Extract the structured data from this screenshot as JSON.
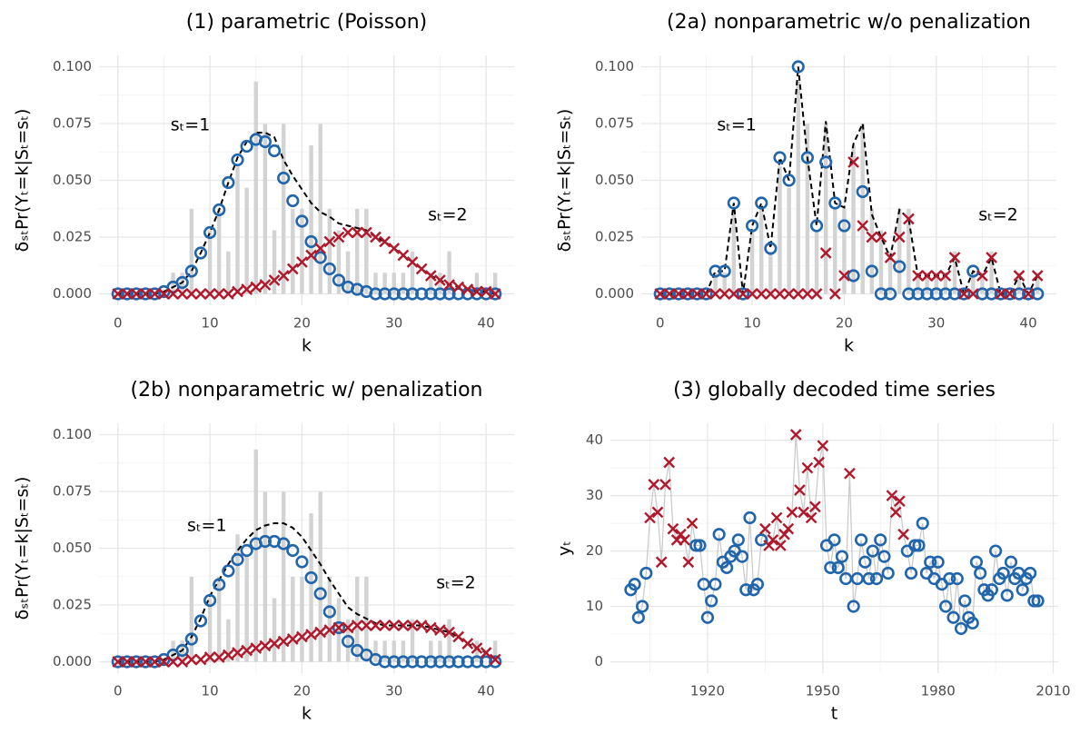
{
  "chart_data": [
    {
      "type": "combo",
      "title": "(1) parametric (Poisson)",
      "xlabel": "k",
      "ylabel": "δₛₜPr(Yₜ=k|Sₜ=sₜ)",
      "annotations": [
        "sₜ=1",
        "sₜ=2"
      ],
      "x": [
        0,
        1,
        2,
        3,
        4,
        5,
        6,
        7,
        8,
        9,
        10,
        11,
        12,
        13,
        14,
        15,
        16,
        17,
        18,
        19,
        20,
        21,
        22,
        23,
        24,
        25,
        26,
        27,
        28,
        29,
        30,
        31,
        32,
        33,
        34,
        35,
        36,
        37,
        38,
        39,
        40,
        41
      ],
      "xlim": [
        -2.05,
        43.05
      ],
      "xticks": [
        0,
        10,
        20,
        30,
        40
      ],
      "ylim": [
        -0.005,
        0.105
      ],
      "yticks": [
        {
          "value": 0,
          "label": "0.000"
        },
        {
          "value": 0.025,
          "label": "0.025"
        },
        {
          "value": 0.05,
          "label": "0.050"
        },
        {
          "value": 0.075,
          "label": "0.075"
        },
        {
          "value": 0.1,
          "label": "0.100"
        }
      ],
      "grid": true,
      "minor_grid": true,
      "series": [
        {
          "kind": "bar",
          "color": "#d3d3d3",
          "values": [
            0,
            0,
            0,
            0,
            0,
            0,
            0.0093,
            0.0093,
            0.0374,
            0,
            0.028,
            0.0374,
            0.0187,
            0.0561,
            0.0467,
            0.0935,
            0.0748,
            0.028,
            0.0748,
            0.0374,
            0.0374,
            0.0654,
            0.0748,
            0.0374,
            0.028,
            0.0187,
            0.0374,
            0.0374,
            0.0093,
            0.0093,
            0.0093,
            0.0093,
            0.0187,
            0,
            0.0093,
            0.0093,
            0.0187,
            0,
            0,
            0.0093,
            0,
            0.0093
          ]
        },
        {
          "kind": "line",
          "dash": true,
          "color": "#000000",
          "values": [
            0,
            0,
            0,
            0,
            0,
            0.001,
            0.003,
            0.005,
            0.01,
            0.018,
            0.027,
            0.037,
            0.049,
            0.06,
            0.067,
            0.071,
            0.071,
            0.069,
            0.059,
            0.052,
            0.046,
            0.04,
            0.036,
            0.034,
            0.031,
            0.03,
            0.029,
            0.028,
            0.025,
            0.023,
            0.02,
            0.017,
            0.014,
            0.011,
            0.008,
            0.006,
            0.004,
            0.003,
            0.002,
            0.001,
            0.001,
            0
          ]
        },
        {
          "kind": "marker",
          "marker": "circle",
          "color": "#2166ac",
          "values": [
            0,
            0,
            0,
            0,
            0,
            0.001,
            0.003,
            0.005,
            0.01,
            0.018,
            0.027,
            0.037,
            0.049,
            0.059,
            0.065,
            0.068,
            0.067,
            0.063,
            0.051,
            0.041,
            0.032,
            0.023,
            0.016,
            0.011,
            0.006,
            0.003,
            0.002,
            0.001,
            0,
            0,
            0,
            0,
            0,
            0,
            0,
            0,
            0,
            0,
            0,
            0,
            0,
            0
          ]
        },
        {
          "kind": "marker",
          "marker": "cross",
          "color": "#b2182b",
          "values": [
            0,
            0,
            0,
            0,
            0,
            0,
            0,
            0,
            0,
            0,
            0,
            0,
            0,
            0.001,
            0.002,
            0.003,
            0.004,
            0.006,
            0.008,
            0.011,
            0.014,
            0.017,
            0.02,
            0.023,
            0.025,
            0.027,
            0.027,
            0.027,
            0.025,
            0.023,
            0.02,
            0.017,
            0.014,
            0.011,
            0.008,
            0.006,
            0.004,
            0.003,
            0.002,
            0.001,
            0.001,
            0
          ]
        }
      ]
    },
    {
      "type": "combo",
      "title": "(2a) nonparametric w/o penalization",
      "xlabel": "k",
      "ylabel": "δₛₜPr(Yₜ=k|Sₜ=sₜ)",
      "annotations": [
        "sₜ=1",
        "sₜ=2"
      ],
      "x": [
        0,
        1,
        2,
        3,
        4,
        5,
        6,
        7,
        8,
        9,
        10,
        11,
        12,
        13,
        14,
        15,
        16,
        17,
        18,
        19,
        20,
        21,
        22,
        23,
        24,
        25,
        26,
        27,
        28,
        29,
        30,
        31,
        32,
        33,
        34,
        35,
        36,
        37,
        38,
        39,
        40,
        41
      ],
      "xlim": [
        -2.05,
        43.05
      ],
      "xticks": [
        0,
        10,
        20,
        30,
        40
      ],
      "ylim": [
        -0.005,
        0.105
      ],
      "yticks": [
        {
          "value": 0,
          "label": "0.000"
        },
        {
          "value": 0.025,
          "label": "0.025"
        },
        {
          "value": 0.05,
          "label": "0.050"
        },
        {
          "value": 0.075,
          "label": "0.075"
        },
        {
          "value": 0.1,
          "label": "0.100"
        }
      ],
      "grid": true,
      "minor_grid": true,
      "series": [
        {
          "kind": "bar",
          "color": "#d3d3d3",
          "values": [
            0,
            0,
            0,
            0,
            0,
            0,
            0.0093,
            0.0093,
            0.0374,
            0,
            0.028,
            0.0374,
            0.0187,
            0.0561,
            0.0467,
            0.0935,
            0.0748,
            0.028,
            0.0748,
            0.0374,
            0.0374,
            0.0654,
            0.0748,
            0.0374,
            0.028,
            0.0187,
            0.0374,
            0.0374,
            0.0093,
            0.0093,
            0.0093,
            0.0093,
            0.0187,
            0,
            0.0093,
            0.0093,
            0.0187,
            0,
            0,
            0.0093,
            0,
            0.0093
          ]
        },
        {
          "kind": "line",
          "dash": true,
          "color": "#000000",
          "values": [
            0,
            0,
            0,
            0,
            0,
            0,
            0.01,
            0.01,
            0.04,
            0,
            0.03,
            0.04,
            0.02,
            0.06,
            0.05,
            0.1,
            0.06,
            0.03,
            0.076,
            0.04,
            0.038,
            0.066,
            0.075,
            0.035,
            0.025,
            0.016,
            0.037,
            0.033,
            0.008,
            0.008,
            0.008,
            0.008,
            0.016,
            0,
            0.01,
            0.008,
            0.016,
            0,
            0,
            0.008,
            0,
            0.008
          ]
        },
        {
          "kind": "marker",
          "marker": "circle",
          "color": "#2166ac",
          "values": [
            0,
            0,
            0,
            0,
            0,
            0,
            0.01,
            0.01,
            0.04,
            0,
            0.03,
            0.04,
            0.02,
            0.06,
            0.05,
            0.1,
            0.06,
            0.03,
            0.058,
            0.04,
            0.03,
            0.008,
            0.045,
            0.01,
            0,
            0,
            0.012,
            0,
            0,
            0,
            0,
            0,
            0,
            0,
            0.01,
            0,
            0,
            0,
            0,
            0,
            0,
            0
          ]
        },
        {
          "kind": "marker",
          "marker": "cross",
          "color": "#b2182b",
          "values": [
            0,
            0,
            0,
            0,
            0,
            0,
            0,
            0,
            0,
            0,
            0,
            0,
            0,
            0,
            0,
            0,
            0,
            0,
            0.018,
            0,
            0.008,
            0.058,
            0.03,
            0.025,
            0.025,
            0.016,
            0.025,
            0.033,
            0.008,
            0.008,
            0.008,
            0.008,
            0.016,
            0,
            0,
            0.008,
            0.016,
            0,
            0,
            0.008,
            0,
            0.008
          ]
        }
      ]
    },
    {
      "type": "combo",
      "title": "(2b) nonparametric w/ penalization",
      "xlabel": "k",
      "ylabel": "δₛₜPr(Yₜ=k|Sₜ=sₜ)",
      "annotations": [
        "sₜ=1",
        "sₜ=2"
      ],
      "x": [
        0,
        1,
        2,
        3,
        4,
        5,
        6,
        7,
        8,
        9,
        10,
        11,
        12,
        13,
        14,
        15,
        16,
        17,
        18,
        19,
        20,
        21,
        22,
        23,
        24,
        25,
        26,
        27,
        28,
        29,
        30,
        31,
        32,
        33,
        34,
        35,
        36,
        37,
        38,
        39,
        40,
        41
      ],
      "xlim": [
        -2.05,
        43.05
      ],
      "xticks": [
        0,
        10,
        20,
        30,
        40
      ],
      "ylim": [
        -0.005,
        0.105
      ],
      "yticks": [
        {
          "value": 0,
          "label": "0.000"
        },
        {
          "value": 0.025,
          "label": "0.025"
        },
        {
          "value": 0.05,
          "label": "0.050"
        },
        {
          "value": 0.075,
          "label": "0.075"
        },
        {
          "value": 0.1,
          "label": "0.100"
        }
      ],
      "grid": true,
      "minor_grid": true,
      "series": [
        {
          "kind": "bar",
          "color": "#d3d3d3",
          "values": [
            0,
            0,
            0,
            0,
            0,
            0,
            0.0093,
            0.0093,
            0.0374,
            0,
            0.028,
            0.0374,
            0.0187,
            0.0561,
            0.0467,
            0.0935,
            0.0748,
            0.028,
            0.0748,
            0.0374,
            0.0374,
            0.0654,
            0.0748,
            0.0374,
            0.028,
            0.0187,
            0.0374,
            0.0374,
            0.0093,
            0.0093,
            0.0093,
            0.0093,
            0.0187,
            0,
            0.0093,
            0.0093,
            0.0187,
            0,
            0,
            0.0093,
            0,
            0.0093
          ]
        },
        {
          "kind": "line",
          "dash": true,
          "color": "#000000",
          "values": [
            0,
            0,
            0,
            0,
            0,
            0.001,
            0.003,
            0.005,
            0.011,
            0.019,
            0.029,
            0.036,
            0.043,
            0.049,
            0.054,
            0.058,
            0.06,
            0.061,
            0.061,
            0.059,
            0.055,
            0.049,
            0.043,
            0.036,
            0.03,
            0.024,
            0.021,
            0.019,
            0.017,
            0.016,
            0.016,
            0.016,
            0.016,
            0.016,
            0.015,
            0.014,
            0.013,
            0.011,
            0.008,
            0.006,
            0.004,
            0.001
          ]
        },
        {
          "kind": "marker",
          "marker": "circle",
          "color": "#2166ac",
          "values": [
            0,
            0,
            0,
            0,
            0,
            0.001,
            0.003,
            0.005,
            0.01,
            0.018,
            0.027,
            0.034,
            0.04,
            0.045,
            0.049,
            0.052,
            0.053,
            0.053,
            0.052,
            0.049,
            0.044,
            0.037,
            0.03,
            0.022,
            0.015,
            0.009,
            0.005,
            0.003,
            0.001,
            0,
            0,
            0,
            0,
            0,
            0,
            0,
            0,
            0,
            0,
            0,
            0,
            0
          ]
        },
        {
          "kind": "marker",
          "marker": "cross",
          "color": "#b2182b",
          "values": [
            0,
            0,
            0,
            0,
            0,
            0,
            0,
            0,
            0.001,
            0.001,
            0.002,
            0.002,
            0.003,
            0.004,
            0.005,
            0.006,
            0.007,
            0.008,
            0.009,
            0.01,
            0.011,
            0.012,
            0.013,
            0.014,
            0.015,
            0.015,
            0.016,
            0.016,
            0.016,
            0.016,
            0.016,
            0.016,
            0.016,
            0.016,
            0.015,
            0.014,
            0.013,
            0.011,
            0.008,
            0.006,
            0.004,
            0.001
          ]
        }
      ]
    },
    {
      "type": "line",
      "title": "(3) globally decoded time series",
      "xlabel": "t",
      "ylabel": "yₜ",
      "x": [
        1900,
        1901,
        1902,
        1903,
        1904,
        1905,
        1906,
        1907,
        1908,
        1909,
        1910,
        1911,
        1912,
        1913,
        1914,
        1915,
        1916,
        1917,
        1918,
        1919,
        1920,
        1921,
        1922,
        1923,
        1924,
        1925,
        1926,
        1927,
        1928,
        1929,
        1930,
        1931,
        1932,
        1933,
        1934,
        1935,
        1936,
        1937,
        1938,
        1939,
        1940,
        1941,
        1942,
        1943,
        1944,
        1945,
        1946,
        1947,
        1948,
        1949,
        1950,
        1951,
        1952,
        1953,
        1954,
        1955,
        1956,
        1957,
        1958,
        1959,
        1960,
        1961,
        1962,
        1963,
        1964,
        1965,
        1966,
        1967,
        1968,
        1969,
        1970,
        1971,
        1972,
        1973,
        1974,
        1975,
        1976,
        1977,
        1978,
        1979,
        1980,
        1981,
        1982,
        1983,
        1984,
        1985,
        1986,
        1987,
        1988,
        1989,
        1990,
        1991,
        1992,
        1993,
        1994,
        1995,
        1996,
        1997,
        1998,
        1999,
        2000,
        2001,
        2002,
        2003,
        2004,
        2005,
        2006
      ],
      "values": [
        13,
        14,
        8,
        10,
        16,
        26,
        32,
        27,
        18,
        32,
        36,
        24,
        22,
        23,
        22,
        18,
        25,
        21,
        21,
        14,
        8,
        11,
        14,
        23,
        18,
        17,
        19,
        20,
        22,
        19,
        13,
        26,
        13,
        14,
        22,
        24,
        21,
        22,
        26,
        21,
        23,
        24,
        27,
        41,
        31,
        27,
        35,
        26,
        28,
        36,
        39,
        21,
        17,
        22,
        17,
        19,
        15,
        34,
        10,
        15,
        22,
        18,
        15,
        20,
        15,
        22,
        19,
        16,
        30,
        27,
        29,
        23,
        20,
        16,
        21,
        21,
        25,
        16,
        18,
        15,
        18,
        14,
        10,
        15,
        8,
        15,
        6,
        11,
        8,
        7,
        18,
        16,
        13,
        12,
        13,
        20,
        15,
        16,
        12,
        18,
        15,
        16,
        13,
        15,
        16,
        11,
        11
      ],
      "states": [
        1,
        1,
        1,
        1,
        1,
        2,
        2,
        2,
        2,
        2,
        2,
        2,
        2,
        2,
        2,
        2,
        2,
        1,
        1,
        1,
        1,
        1,
        1,
        1,
        1,
        1,
        1,
        1,
        1,
        1,
        1,
        1,
        1,
        1,
        1,
        2,
        2,
        2,
        2,
        2,
        2,
        2,
        2,
        2,
        2,
        2,
        2,
        2,
        2,
        2,
        2,
        1,
        1,
        1,
        1,
        1,
        1,
        2,
        1,
        1,
        1,
        1,
        1,
        1,
        1,
        1,
        1,
        1,
        2,
        2,
        2,
        2,
        1,
        1,
        1,
        1,
        1,
        1,
        1,
        1,
        1,
        1,
        1,
        1,
        1,
        1,
        1,
        1,
        1,
        1,
        1,
        1,
        1,
        1,
        1,
        1,
        1,
        1,
        1,
        1,
        1,
        1,
        1,
        1,
        1,
        1,
        1
      ],
      "line_color": "#c8c8c8",
      "state_colors": [
        "#2166ac",
        "#b2182b"
      ],
      "state_markers": [
        "circle",
        "cross"
      ],
      "xlim": [
        1894.7,
        2011.3
      ],
      "xticks": [
        1920,
        1950,
        1980,
        2010
      ],
      "ylim": [
        -2.05,
        43.05
      ],
      "yticks": [
        0,
        10,
        20,
        30,
        40
      ],
      "grid": true,
      "minor_grid": true
    }
  ]
}
